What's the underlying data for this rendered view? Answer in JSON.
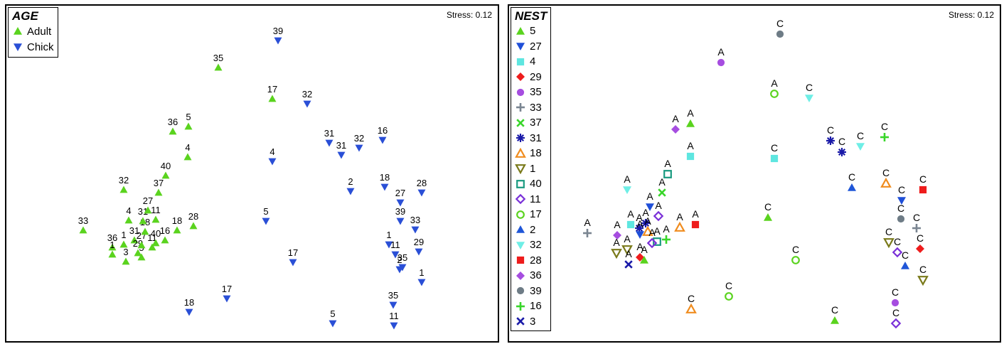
{
  "chart_data": [
    {
      "type": "scatter",
      "stress": "Stress: 0.12",
      "legend": {
        "title": "AGE",
        "placement": "top-left",
        "entries": [
          {
            "label": "Adult",
            "marker": "triangle-up",
            "color": "#5ad31e"
          },
          {
            "label": "Chick",
            "marker": "triangle-down",
            "color": "#2a4fd6"
          }
        ]
      },
      "axes": {
        "visible": false,
        "xlim": [
          0,
          695
        ],
        "ylim": [
          0,
          476
        ]
      },
      "points": [
        {
          "x": 108,
          "y": 316,
          "label": "33",
          "group": "Adult"
        },
        {
          "x": 149,
          "y": 340,
          "label": "36",
          "group": "Adult"
        },
        {
          "x": 149,
          "y": 350,
          "label": "1",
          "group": "Adult"
        },
        {
          "x": 165,
          "y": 336,
          "label": "1",
          "group": "Adult"
        },
        {
          "x": 168,
          "y": 360,
          "label": "3",
          "group": "Adult"
        },
        {
          "x": 172,
          "y": 302,
          "label": "4",
          "group": "Adult"
        },
        {
          "x": 180,
          "y": 330,
          "label": "31",
          "group": "Adult"
        },
        {
          "x": 185,
          "y": 348,
          "label": "29",
          "group": "Adult"
        },
        {
          "x": 190,
          "y": 354,
          "label": "5",
          "group": "Adult"
        },
        {
          "x": 190,
          "y": 337,
          "label": "27",
          "group": "Adult"
        },
        {
          "x": 195,
          "y": 318,
          "label": "18",
          "group": "Adult"
        },
        {
          "x": 192,
          "y": 303,
          "label": "31",
          "group": "Adult"
        },
        {
          "x": 199,
          "y": 288,
          "label": "27",
          "group": "Adult"
        },
        {
          "x": 205,
          "y": 340,
          "label": "11",
          "group": "Adult"
        },
        {
          "x": 210,
          "y": 334,
          "label": "40",
          "group": "Adult"
        },
        {
          "x": 210,
          "y": 301,
          "label": "11",
          "group": "Adult"
        },
        {
          "x": 214,
          "y": 263,
          "label": "37",
          "group": "Adult"
        },
        {
          "x": 223,
          "y": 330,
          "label": "16",
          "group": "Adult"
        },
        {
          "x": 224,
          "y": 239,
          "label": "40",
          "group": "Adult"
        },
        {
          "x": 165,
          "y": 259,
          "label": "32",
          "group": "Adult"
        },
        {
          "x": 240,
          "y": 316,
          "label": "18",
          "group": "Adult"
        },
        {
          "x": 263,
          "y": 310,
          "label": "28",
          "group": "Adult"
        },
        {
          "x": 234,
          "y": 177,
          "label": "36",
          "group": "Adult"
        },
        {
          "x": 256,
          "y": 170,
          "label": "5",
          "group": "Adult"
        },
        {
          "x": 255,
          "y": 213,
          "label": "4",
          "group": "Adult"
        },
        {
          "x": 298,
          "y": 87,
          "label": "35",
          "group": "Adult"
        },
        {
          "x": 374,
          "y": 131,
          "label": "17",
          "group": "Adult"
        },
        {
          "x": 382,
          "y": 49,
          "label": "39",
          "group": "Chick"
        },
        {
          "x": 423,
          "y": 138,
          "label": "32",
          "group": "Chick"
        },
        {
          "x": 374,
          "y": 219,
          "label": "4",
          "group": "Chick"
        },
        {
          "x": 454,
          "y": 193,
          "label": "31",
          "group": "Chick"
        },
        {
          "x": 471,
          "y": 210,
          "label": "31",
          "group": "Chick"
        },
        {
          "x": 496,
          "y": 200,
          "label": "32",
          "group": "Chick"
        },
        {
          "x": 529,
          "y": 189,
          "label": "16",
          "group": "Chick"
        },
        {
          "x": 484,
          "y": 261,
          "label": "2",
          "group": "Chick"
        },
        {
          "x": 532,
          "y": 255,
          "label": "18",
          "group": "Chick"
        },
        {
          "x": 554,
          "y": 277,
          "label": "27",
          "group": "Chick"
        },
        {
          "x": 584,
          "y": 263,
          "label": "28",
          "group": "Chick"
        },
        {
          "x": 554,
          "y": 303,
          "label": "39",
          "group": "Chick"
        },
        {
          "x": 575,
          "y": 315,
          "label": "33",
          "group": "Chick"
        },
        {
          "x": 538,
          "y": 336,
          "label": "1",
          "group": "Chick"
        },
        {
          "x": 547,
          "y": 350,
          "label": "11",
          "group": "Chick"
        },
        {
          "x": 580,
          "y": 346,
          "label": "29",
          "group": "Chick"
        },
        {
          "x": 557,
          "y": 368,
          "label": "35",
          "group": "Chick"
        },
        {
          "x": 553,
          "y": 371,
          "label": "2",
          "group": "Chick"
        },
        {
          "x": 584,
          "y": 389,
          "label": "1",
          "group": "Chick"
        },
        {
          "x": 544,
          "y": 421,
          "label": "35",
          "group": "Chick"
        },
        {
          "x": 545,
          "y": 450,
          "label": "11",
          "group": "Chick"
        },
        {
          "x": 459,
          "y": 447,
          "label": "5",
          "group": "Chick"
        },
        {
          "x": 365,
          "y": 303,
          "label": "5",
          "group": "Chick"
        },
        {
          "x": 403,
          "y": 361,
          "label": "17",
          "group": "Chick"
        },
        {
          "x": 310,
          "y": 412,
          "label": "17",
          "group": "Chick"
        },
        {
          "x": 257,
          "y": 431,
          "label": "18",
          "group": "Chick"
        }
      ]
    },
    {
      "type": "scatter",
      "stress": "Stress: 0.12",
      "legend": {
        "title": "NEST",
        "placement": "top-left",
        "entries": [
          {
            "label": "5",
            "marker": "triangle-up",
            "color": "#5ad31e"
          },
          {
            "label": "27",
            "marker": "triangle-down",
            "color": "#1f4fd8"
          },
          {
            "label": "4",
            "marker": "square",
            "color": "#5ee6e0"
          },
          {
            "label": "29",
            "marker": "diamond",
            "color": "#ee1c1c"
          },
          {
            "label": "35",
            "marker": "circle",
            "color": "#a64de0"
          },
          {
            "label": "33",
            "marker": "plus",
            "color": "#7a8591"
          },
          {
            "label": "37",
            "marker": "cross",
            "color": "#39d62a"
          },
          {
            "label": "31",
            "marker": "asterisk",
            "color": "#1a1aa8"
          },
          {
            "label": "18",
            "marker": "triangle-up-open",
            "color": "#f08c1e"
          },
          {
            "label": "1",
            "marker": "triangle-down-open",
            "color": "#7a7a1a"
          },
          {
            "label": "40",
            "marker": "square-open",
            "color": "#1a9a80"
          },
          {
            "label": "11",
            "marker": "diamond-open",
            "color": "#7a30d8"
          },
          {
            "label": "17",
            "marker": "circle-open",
            "color": "#5ad31e"
          },
          {
            "label": "2",
            "marker": "triangle-up",
            "color": "#1f56d8"
          },
          {
            "label": "32",
            "marker": "triangle-down",
            "color": "#6eeee6"
          },
          {
            "label": "28",
            "marker": "square",
            "color": "#ee1c1c"
          },
          {
            "label": "36",
            "marker": "diamond",
            "color": "#a64de0"
          },
          {
            "label": "39",
            "marker": "circle",
            "color": "#6e7c86"
          },
          {
            "label": "16",
            "marker": "plus",
            "color": "#39d62a"
          },
          {
            "label": "3",
            "marker": "cross",
            "color": "#1a1aa8"
          }
        ]
      },
      "axes": {
        "visible": false,
        "xlim": [
          0,
          694
        ],
        "ylim": [
          0,
          476
        ]
      },
      "points": [
        {
          "x": 381,
          "y": 40,
          "label": "C",
          "nest": "39"
        },
        {
          "x": 298,
          "y": 80,
          "label": "A",
          "nest": "35"
        },
        {
          "x": 373,
          "y": 124,
          "label": "A",
          "nest": "17"
        },
        {
          "x": 422,
          "y": 130,
          "label": "C",
          "nest": "32"
        },
        {
          "x": 255,
          "y": 166,
          "label": "A",
          "nest": "5"
        },
        {
          "x": 234,
          "y": 174,
          "label": "A",
          "nest": "36"
        },
        {
          "x": 452,
          "y": 190,
          "label": "C",
          "nest": "31"
        },
        {
          "x": 468,
          "y": 206,
          "label": "C",
          "nest": "31"
        },
        {
          "x": 494,
          "y": 198,
          "label": "C",
          "nest": "32"
        },
        {
          "x": 528,
          "y": 185,
          "label": "C",
          "nest": "16"
        },
        {
          "x": 255,
          "y": 212,
          "label": "A",
          "nest": "4"
        },
        {
          "x": 373,
          "y": 215,
          "label": "C",
          "nest": "4"
        },
        {
          "x": 223,
          "y": 237,
          "label": "A",
          "nest": "40"
        },
        {
          "x": 215,
          "y": 263,
          "label": "A",
          "nest": "37"
        },
        {
          "x": 166,
          "y": 259,
          "label": "A",
          "nest": "32"
        },
        {
          "x": 482,
          "y": 256,
          "label": "C",
          "nest": "2"
        },
        {
          "x": 530,
          "y": 250,
          "label": "C",
          "nest": "18"
        },
        {
          "x": 552,
          "y": 274,
          "label": "C",
          "nest": "27"
        },
        {
          "x": 582,
          "y": 259,
          "label": "C",
          "nest": "28"
        },
        {
          "x": 198,
          "y": 283,
          "label": "A",
          "nest": "27"
        },
        {
          "x": 210,
          "y": 296,
          "label": "A",
          "nest": "11"
        },
        {
          "x": 110,
          "y": 320,
          "label": "A",
          "nest": "33"
        },
        {
          "x": 152,
          "y": 323,
          "label": "A",
          "nest": "36"
        },
        {
          "x": 171,
          "y": 308,
          "label": "A",
          "nest": "4"
        },
        {
          "x": 183,
          "y": 313,
          "label": "A",
          "nest": "31"
        },
        {
          "x": 192,
          "y": 306,
          "label": "A",
          "nest": "31"
        },
        {
          "x": 184,
          "y": 322,
          "label": "A",
          "nest": "27"
        },
        {
          "x": 195,
          "y": 318,
          "label": "A",
          "nest": "18"
        },
        {
          "x": 208,
          "y": 332,
          "label": "A",
          "nest": "40"
        },
        {
          "x": 201,
          "y": 334,
          "label": "A",
          "nest": "11"
        },
        {
          "x": 221,
          "y": 329,
          "label": "A",
          "nest": "16"
        },
        {
          "x": 240,
          "y": 312,
          "label": "A",
          "nest": "18"
        },
        {
          "x": 262,
          "y": 308,
          "label": "A",
          "nest": "28"
        },
        {
          "x": 364,
          "y": 298,
          "label": "C",
          "nest": "5"
        },
        {
          "x": 551,
          "y": 300,
          "label": "C",
          "nest": "39"
        },
        {
          "x": 573,
          "y": 313,
          "label": "C",
          "nest": "33"
        },
        {
          "x": 534,
          "y": 333,
          "label": "C",
          "nest": "1"
        },
        {
          "x": 546,
          "y": 347,
          "label": "C",
          "nest": "11"
        },
        {
          "x": 578,
          "y": 342,
          "label": "C",
          "nest": "29"
        },
        {
          "x": 557,
          "y": 366,
          "label": "C",
          "nest": "2"
        },
        {
          "x": 582,
          "y": 386,
          "label": "C",
          "nest": "1"
        },
        {
          "x": 151,
          "y": 348,
          "label": "A",
          "nest": "1"
        },
        {
          "x": 166,
          "y": 343,
          "label": "A",
          "nest": "1"
        },
        {
          "x": 184,
          "y": 354,
          "label": "A",
          "nest": "29"
        },
        {
          "x": 190,
          "y": 358,
          "label": "A",
          "nest": "5"
        },
        {
          "x": 168,
          "y": 364,
          "label": "A",
          "nest": "3"
        },
        {
          "x": 403,
          "y": 358,
          "label": "C",
          "nest": "17"
        },
        {
          "x": 309,
          "y": 409,
          "label": "C",
          "nest": "17"
        },
        {
          "x": 256,
          "y": 427,
          "label": "C",
          "nest": "18"
        },
        {
          "x": 543,
          "y": 418,
          "label": "C",
          "nest": "35"
        },
        {
          "x": 544,
          "y": 447,
          "label": "C",
          "nest": "11"
        },
        {
          "x": 458,
          "y": 443,
          "label": "C",
          "nest": "5"
        }
      ]
    }
  ]
}
